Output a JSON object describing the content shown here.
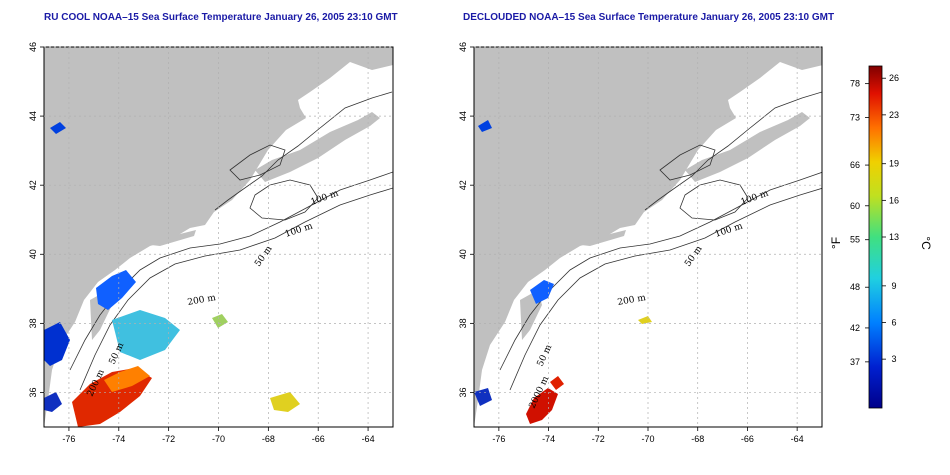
{
  "chart_data": [
    {
      "type": "map",
      "title": "RU COOL NOAA–15 Sea Surface Temperature January 26, 2005 23:10 GMT",
      "xlim": [
        -77,
        -63
      ],
      "ylim": [
        35,
        46
      ],
      "x_ticks": [
        -76,
        -74,
        -72,
        -70,
        -68,
        -66,
        -64
      ],
      "y_ticks": [
        36,
        38,
        40,
        42,
        44,
        46
      ],
      "x_tick_labels": [
        "-76",
        "-74",
        "-72",
        "-70",
        "-68",
        "-66",
        "-64"
      ],
      "y_tick_labels": [
        "36",
        "38",
        "40",
        "42",
        "44",
        "46"
      ],
      "grid": true,
      "contour_labels": [
        "100 m",
        "100 m",
        "50 m",
        "200 m",
        "50 m",
        "200 m"
      ]
    },
    {
      "type": "map",
      "title": "DECLOUDED NOAA–15 Sea Surface Temperature January 26, 2005 23:10 GMT",
      "xlim": [
        -77,
        -63
      ],
      "ylim": [
        35,
        46
      ],
      "x_ticks": [
        -76,
        -74,
        -72,
        -70,
        -68,
        -66,
        -64
      ],
      "y_ticks": [
        36,
        38,
        40,
        42,
        44,
        46
      ],
      "x_tick_labels": [
        "-76",
        "-74",
        "-72",
        "-70",
        "-68",
        "-66",
        "-64"
      ],
      "y_tick_labels": [
        "36",
        "38",
        "40",
        "42",
        "44",
        "46"
      ],
      "grid": true,
      "contour_labels": [
        "100 m",
        "100 m",
        "50 m",
        "200 m",
        "50 m",
        "2000 m"
      ]
    }
  ],
  "colorbar": {
    "range_c": [
      -1,
      27
    ],
    "fahrenheit_ticks": [
      78,
      73,
      66,
      60,
      55,
      48,
      42,
      37
    ],
    "fahrenheit_labels": [
      "78",
      "73",
      "66",
      "60",
      "55",
      "48",
      "42",
      "37"
    ],
    "celsius_ticks": [
      26,
      23,
      19,
      16,
      13,
      9,
      6,
      3
    ],
    "celsius_labels": [
      "26",
      "23",
      "19",
      "16",
      "13",
      "9",
      "6",
      "3"
    ],
    "unit_f": "°F",
    "unit_c": "°C"
  },
  "colors": {
    "land": "#c0c0c0",
    "title": "#1a1aa6",
    "grid": "#b0b0b0"
  }
}
